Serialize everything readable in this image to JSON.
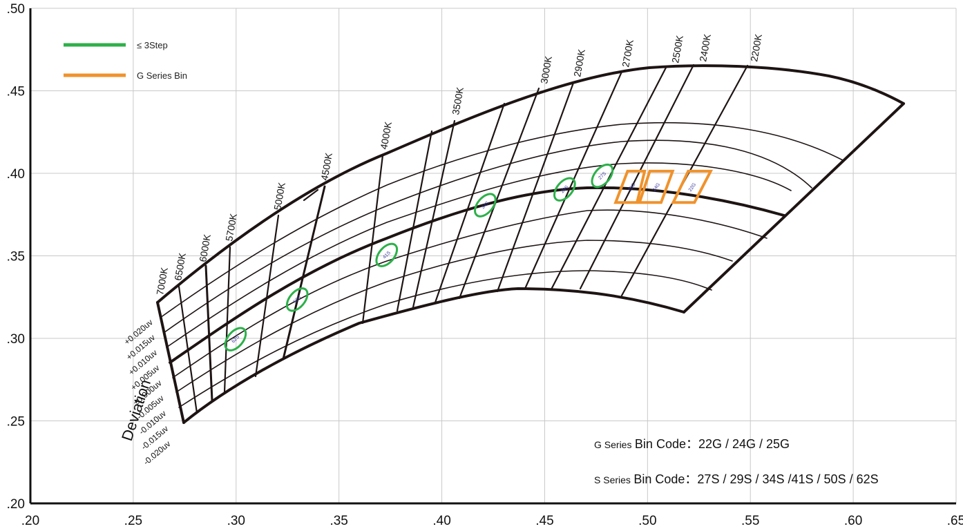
{
  "chart_data": {
    "type": "scatter",
    "x_ticks": [
      ".20",
      ".25",
      ".30",
      ".35",
      ".40",
      ".45",
      ".50",
      ".55",
      ".60",
      ".65"
    ],
    "y_ticks": [
      ".20",
      ".25",
      ".30",
      ".35",
      ".40",
      ".45",
      ".50"
    ],
    "xlim": [
      0.2,
      0.65
    ],
    "ylim": [
      0.2,
      0.5
    ],
    "grid": true,
    "legend_position": "top-left",
    "legend": [
      {
        "label": "≤  3Step",
        "color": "#2db04a"
      },
      {
        "label": "G Series Bin",
        "color": "#f0922b"
      }
    ],
    "y_axis_title": "Deviation",
    "deviation_labels": [
      "+0.020uv",
      "+0.015uv",
      "+0.010uv",
      "+0.005uv",
      "±0.000uv",
      "-0.005uv",
      "-0.010uv",
      "-0.015uv",
      "-0.020uv"
    ],
    "cct_labels": [
      "7000K",
      "6500K",
      "6000K",
      "5700K",
      "5000K",
      "4500K",
      "4000K",
      "3500K",
      "3000K",
      "2900K",
      "2700K",
      "2500K",
      "2400K",
      "2200K"
    ],
    "s_bins": [
      {
        "label": "62S",
        "x": 0.2997,
        "y": 0.2995
      },
      {
        "label": "50S",
        "x": 0.3297,
        "y": 0.3235
      },
      {
        "label": "41S",
        "x": 0.3732,
        "y": 0.3505
      },
      {
        "label": "34S",
        "x": 0.4211,
        "y": 0.3807
      },
      {
        "label": "29S",
        "x": 0.4597,
        "y": 0.3903
      },
      {
        "label": "27S",
        "x": 0.478,
        "y": 0.3985
      }
    ],
    "g_bins": [
      {
        "label": "25G",
        "points": [
          [
            0.4845,
            0.3823
          ],
          [
            0.4949,
            0.3823
          ],
          [
            0.4986,
            0.4013
          ],
          [
            0.4903,
            0.4013
          ]
        ]
      },
      {
        "label": "24G",
        "points": [
          [
            0.4961,
            0.3823
          ],
          [
            0.5066,
            0.3823
          ],
          [
            0.5122,
            0.4013
          ],
          [
            0.5011,
            0.4013
          ]
        ]
      },
      {
        "label": "22G",
        "points": [
          [
            0.5125,
            0.3823
          ],
          [
            0.5228,
            0.3823
          ],
          [
            0.5307,
            0.4013
          ],
          [
            0.5198,
            0.4013
          ]
        ]
      }
    ],
    "locus_center": [
      [
        0.271,
        0.3165
      ],
      [
        0.304,
        0.3335
      ],
      [
        0.34,
        0.35
      ],
      [
        0.372,
        0.365
      ],
      [
        0.41,
        0.378
      ],
      [
        0.45,
        0.385
      ],
      [
        0.48,
        0.386
      ],
      [
        0.52,
        0.382
      ],
      [
        0.55,
        0.372
      ],
      [
        0.578,
        0.362
      ]
    ],
    "locus_upper": [
      [
        0.271,
        0.3165
      ],
      [
        0.3,
        0.333
      ],
      [
        0.34,
        0.362
      ],
      [
        0.38,
        0.389
      ],
      [
        0.42,
        0.412
      ],
      [
        0.46,
        0.432
      ],
      [
        0.5,
        0.446
      ],
      [
        0.545,
        0.459
      ],
      [
        0.59,
        0.456
      ],
      [
        0.632,
        0.436
      ]
    ],
    "locus_lower": [
      [
        0.288,
        0.245
      ],
      [
        0.31,
        0.26
      ],
      [
        0.34,
        0.28
      ],
      [
        0.38,
        0.298
      ],
      [
        0.42,
        0.312
      ],
      [
        0.46,
        0.322
      ],
      [
        0.5,
        0.32
      ],
      [
        0.535,
        0.31
      ]
    ]
  },
  "notes": {
    "g_prefix": "G Series",
    "g_main": " Bin Code：22G / 24G / 25G",
    "s_prefix": "S Series",
    "s_main": " Bin Code：27S / 29S / 34S /41S / 50S / 62S"
  },
  "colors": {
    "green": "#2db04a",
    "orange": "#f0922b",
    "line": "#1e1414",
    "grid": "#c8c8c8"
  }
}
